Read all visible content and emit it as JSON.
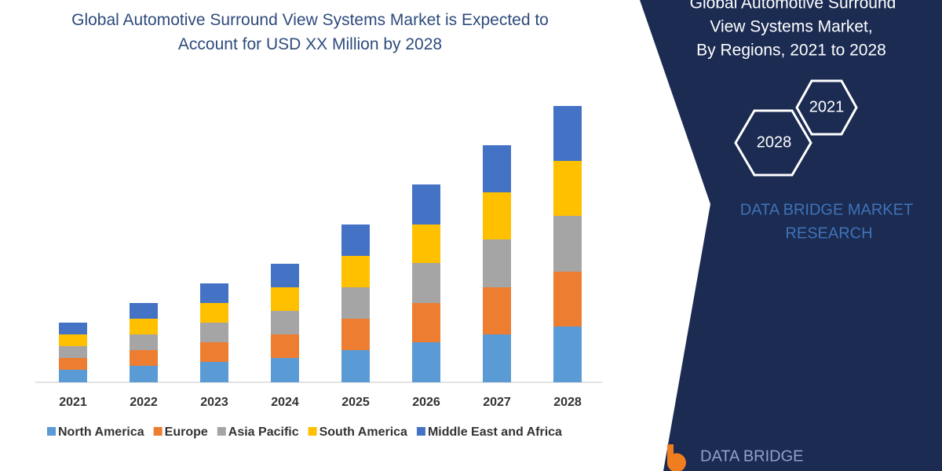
{
  "chart_data": {
    "type": "bar",
    "stacked": true,
    "title": "Global Automotive Surround View Systems Market is Expected to Account for USD XX Million by 2028",
    "categories": [
      "2021",
      "2022",
      "2023",
      "2024",
      "2025",
      "2026",
      "2027",
      "2028"
    ],
    "series": [
      {
        "name": "North America",
        "color": "#5b9bd5",
        "values": [
          16,
          21,
          26,
          31,
          41,
          51,
          61,
          71
        ]
      },
      {
        "name": "Europe",
        "color": "#ed7d31",
        "values": [
          15,
          20,
          25,
          30,
          40,
          50,
          60,
          70
        ]
      },
      {
        "name": "Asia Pacific",
        "color": "#a5a5a5",
        "values": [
          15,
          20,
          25,
          30,
          40,
          51,
          61,
          71
        ]
      },
      {
        "name": "South America",
        "color": "#ffc000",
        "values": [
          15,
          20,
          25,
          30,
          40,
          49,
          60,
          70
        ]
      },
      {
        "name": "Middle East and Africa",
        "color": "#4472c4",
        "values": [
          15,
          20,
          25,
          30,
          40,
          51,
          60,
          70
        ]
      }
    ]
  },
  "panel": {
    "lines": [
      "Global Automotive Surround",
      "View Systems Market,",
      "By Regions,  2021 to 2028"
    ],
    "hex_labels": [
      "2021",
      "2028"
    ],
    "brand": [
      "DATA BRIDGE MARKET",
      "RESEARCH"
    ]
  },
  "logo": "DATA BRIDGE"
}
